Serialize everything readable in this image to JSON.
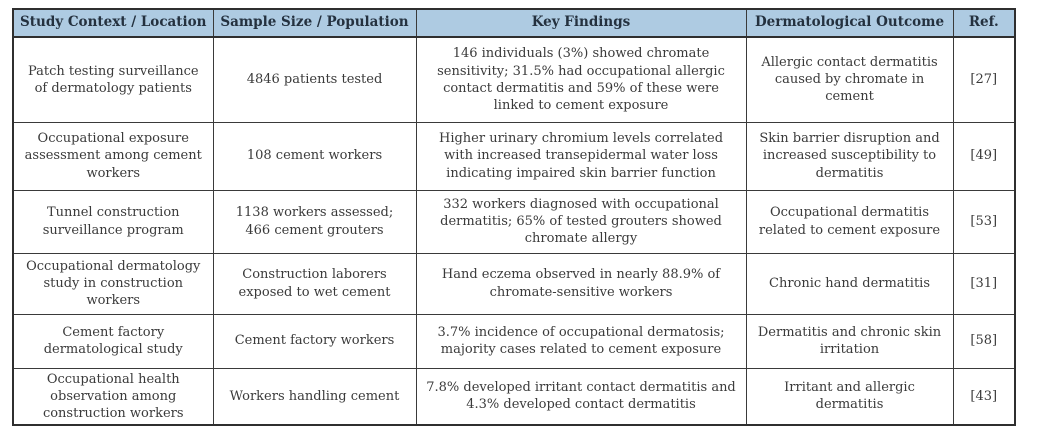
{
  "table": {
    "headers": [
      "Study Context / Location",
      "Sample Size / Population",
      "Key Findings",
      "Dermatological Outcome",
      "Ref."
    ],
    "rows": [
      {
        "study_context": "Patch testing surveillance of dermatology patients",
        "sample_size": "4846 patients tested",
        "key_findings": "146 individuals (3%) showed chromate sensitivity; 31.5% had occupational allergic contact dermatitis and 59% of these were linked to cement exposure",
        "outcome": "Allergic contact dermatitis caused by chromate in cement",
        "ref": "[27]"
      },
      {
        "study_context": "Occupational exposure assessment among cement workers",
        "sample_size": "108 cement workers",
        "key_findings": "Higher urinary chromium levels correlated with increased transepidermal water loss indicating impaired skin barrier function",
        "outcome": "Skin barrier disruption and increased susceptibility to dermatitis",
        "ref": "[49]"
      },
      {
        "study_context": "Tunnel construction surveillance program",
        "sample_size": "1138 workers assessed; 466 cement grouters",
        "key_findings": "332 workers diagnosed with occupational dermatitis; 65% of tested grouters showed chromate allergy",
        "outcome": "Occupational dermatitis related to cement exposure",
        "ref": "[53]"
      },
      {
        "study_context": "Occupational dermatology study in construction workers",
        "sample_size": "Construction laborers exposed to wet cement",
        "key_findings": "Hand eczema observed in nearly 88.9% of chromate-sensitive workers",
        "outcome": "Chronic hand dermatitis",
        "ref": "[31]"
      },
      {
        "study_context": "Cement factory dermatological study",
        "sample_size": "Cement factory workers",
        "key_findings": "3.7% incidence of occupational dermatosis; majority cases related to cement exposure",
        "outcome": "Dermatitis and chronic skin irritation",
        "ref": "[58]"
      },
      {
        "study_context": "Occupational health observation among construction workers",
        "sample_size": "Workers handling cement",
        "key_findings": "7.8% developed irritant contact dermatitis and 4.3% developed contact dermatitis",
        "outcome": "Irritant and allergic dermatitis",
        "ref": "[43]"
      }
    ]
  },
  "colors": {
    "header_bg": "#aecbe2",
    "header_text": "#24313f",
    "body_text": "#3a3a3a",
    "border": "#2f2f2f"
  }
}
